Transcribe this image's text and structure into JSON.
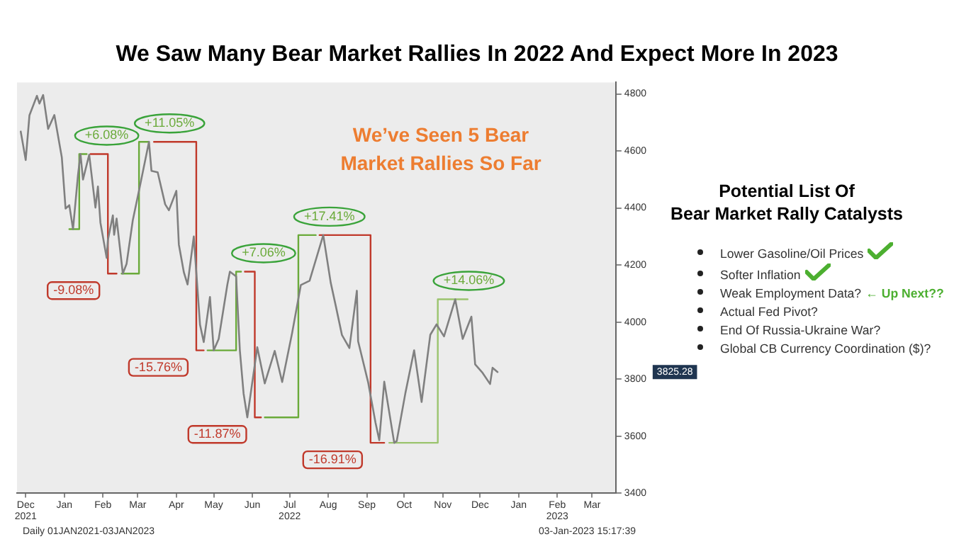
{
  "chart_data": {
    "type": "line",
    "title": "We Saw Many Bear Market Rallies In 2022 And Expect More In 2023",
    "x": [
      "2021-12-16",
      "2021-12-20",
      "2021-12-23",
      "2021-12-29",
      "2021-12-31",
      "2022-01-03",
      "2022-01-07",
      "2022-01-12",
      "2022-01-18",
      "2022-01-21",
      "2022-01-24",
      "2022-01-27",
      "2022-01-31",
      "2022-02-02",
      "2022-02-04",
      "2022-02-09",
      "2022-02-14",
      "2022-02-16",
      "2022-02-18",
      "2022-02-23",
      "2022-02-24",
      "2022-02-28",
      "2022-03-01",
      "2022-03-03",
      "2022-03-08",
      "2022-03-11",
      "2022-03-16",
      "2022-03-21",
      "2022-03-29",
      "2022-03-31",
      "2022-04-05",
      "2022-04-11",
      "2022-04-14",
      "2022-04-20",
      "2022-04-22",
      "2022-04-26",
      "2022-04-29",
      "2022-05-04",
      "2022-05-09",
      "2022-05-12",
      "2022-05-17",
      "2022-05-20",
      "2022-05-24",
      "2022-05-31",
      "2022-06-02",
      "2022-06-07",
      "2022-06-10",
      "2022-06-13",
      "2022-06-16",
      "2022-06-24",
      "2022-06-30",
      "2022-07-08",
      "2022-07-14",
      "2022-07-22",
      "2022-07-29",
      "2022-08-05",
      "2022-08-16",
      "2022-08-22",
      "2022-08-26",
      "2022-08-31",
      "2022-09-06",
      "2022-09-12",
      "2022-09-13",
      "2022-09-21",
      "2022-09-27",
      "2022-09-30",
      "2022-10-04",
      "2022-10-12",
      "2022-10-14",
      "2022-10-21",
      "2022-10-28",
      "2022-11-03",
      "2022-11-10",
      "2022-11-15",
      "2022-11-21",
      "2022-11-30",
      "2022-12-06",
      "2022-12-13",
      "2022-12-16",
      "2022-12-22",
      "2022-12-28",
      "2022-12-30",
      "2023-01-03"
    ],
    "series": [
      {
        "color": "#808080",
        "values": [
          4668,
          4568,
          4725,
          4793,
          4766,
          4796,
          4677,
          4726,
          4577,
          4398,
          4410,
          4326,
          4516,
          4589,
          4500,
          4587,
          4401,
          4475,
          4349,
          4225,
          4288,
          4374,
          4306,
          4363,
          4170,
          4204,
          4357,
          4461,
          4632,
          4530,
          4525,
          4413,
          4392,
          4460,
          4272,
          4175,
          4132,
          4300,
          3991,
          3930,
          4088,
          3901,
          3941,
          4132,
          4177,
          4160,
          3901,
          3750,
          3666,
          3912,
          3785,
          3899,
          3790,
          3962,
          4130,
          4145,
          4305,
          4138,
          4058,
          3955,
          3909,
          4110,
          3933,
          3790,
          3647,
          3586,
          3791,
          3577,
          3583,
          3752,
          3901,
          3720,
          3956,
          3992,
          3950,
          4080,
          3941,
          4019,
          3852,
          3822,
          3783,
          3840,
          3825
        ]
      },
      {
        "color": "#6aaa3a",
        "x": [
          "2022-01-24",
          "2022-02-01",
          "2022-02-01",
          "2022-02-07"
        ],
        "values": [
          4326,
          4326,
          4589,
          4589
        ]
      },
      {
        "color": "#c0392b",
        "x": [
          "2022-02-10",
          "2022-02-24",
          "2022-02-24",
          "2022-03-03"
        ],
        "values": [
          4589,
          4589,
          4170,
          4170
        ]
      },
      {
        "color": "#6aaa3a",
        "x": [
          "2022-03-07",
          "2022-03-21",
          "2022-03-21",
          "2022-03-29"
        ],
        "values": [
          4170,
          4170,
          4632,
          4632
        ]
      },
      {
        "color": "#c0392b",
        "x": [
          "2022-04-02",
          "2022-05-06",
          "2022-05-06",
          "2022-05-12"
        ],
        "values": [
          4632,
          4632,
          3901,
          3901
        ]
      },
      {
        "color": "#6aaa3a",
        "x": [
          "2022-05-15",
          "2022-06-07",
          "2022-06-07",
          "2022-06-11"
        ],
        "values": [
          3901,
          3901,
          4177,
          4177
        ]
      },
      {
        "color": "#c0392b",
        "x": [
          "2022-06-14",
          "2022-06-22",
          "2022-06-22",
          "2022-06-27"
        ],
        "values": [
          4177,
          4177,
          3666,
          3666
        ]
      },
      {
        "color": "#6aaa3a",
        "x": [
          "2022-06-30",
          "2022-07-27",
          "2022-07-27",
          "2022-08-10"
        ],
        "values": [
          3666,
          3666,
          4305,
          4305
        ]
      },
      {
        "color": "#c0392b",
        "x": [
          "2022-08-13",
          "2022-09-23",
          "2022-09-23",
          "2022-10-04"
        ],
        "values": [
          4305,
          4305,
          3577,
          3577
        ]
      },
      {
        "color": "#9bc46e",
        "x": [
          "2022-10-08",
          "2022-11-16",
          "2022-11-16",
          "2022-12-10"
        ],
        "values": [
          3577,
          3577,
          4080,
          4080
        ]
      }
    ],
    "xlim": [
      "2021-12-13",
      "2023-04-08"
    ],
    "xticks": [
      {
        "value": "2021-12-20",
        "label": "Dec\n2021"
      },
      {
        "value": "2022-01-20",
        "label": "Jan"
      },
      {
        "value": "2022-02-20",
        "label": "Feb"
      },
      {
        "value": "2022-03-20",
        "label": "Mar"
      },
      {
        "value": "2022-04-20",
        "label": "Apr"
      },
      {
        "value": "2022-05-20",
        "label": "May"
      },
      {
        "value": "2022-06-20",
        "label": "Jun"
      },
      {
        "value": "2022-07-20",
        "label": "Jul\n2022"
      },
      {
        "value": "2022-08-20",
        "label": "Aug"
      },
      {
        "value": "2022-09-20",
        "label": "Sep"
      },
      {
        "value": "2022-10-20",
        "label": "Oct"
      },
      {
        "value": "2022-11-20",
        "label": "Nov"
      },
      {
        "value": "2022-12-20",
        "label": "Dec"
      },
      {
        "value": "2023-01-20",
        "label": "Jan"
      },
      {
        "value": "2023-02-20",
        "label": "Feb\n2023"
      },
      {
        "value": "2023-03-20",
        "label": "Mar"
      }
    ],
    "ylim": [
      3400,
      4840
    ],
    "yticks": [
      3400,
      3600,
      3800,
      4000,
      4200,
      4400,
      4600,
      4800
    ],
    "grid": false,
    "legend": false,
    "marker": "none",
    "annotations": [
      {
        "text": "+6.08%",
        "x": "2022-02-01",
        "y": 4589
      },
      {
        "text": "-9.08%",
        "x": "2022-02-24",
        "y": 4170
      },
      {
        "text": "+11.05%",
        "x": "2022-03-21",
        "y": 4632
      },
      {
        "text": "-15.76%",
        "x": "2022-05-06",
        "y": 3901
      },
      {
        "text": "+7.06%",
        "x": "2022-06-07",
        "y": 4177
      },
      {
        "text": "-11.87%",
        "x": "2022-06-22",
        "y": 3666
      },
      {
        "text": "+17.41%",
        "x": "2022-07-27",
        "y": 4305
      },
      {
        "text": "-16.91%",
        "x": "2022-09-23",
        "y": 3577
      },
      {
        "text": "+14.06%",
        "x": "2022-11-16",
        "y": 4080
      },
      "We’ve Seen 5 Bear Market Rallies So Far",
      "Potential List Of\nBear Market Rally Catalysts",
      "Lower Gasoline/Oil Prices",
      "Softer Inflation",
      "Weak Employment Data?",
      "Actual Fed Pivot?",
      "End Of Russia-Ukraine War?",
      "Global CB Currency Coordination ($)?",
      "← Up Next??",
      "Daily 01JAN2021-03JAN2023",
      "03-Jan-2023 15:17:39",
      "3825.28"
    ]
  }
}
